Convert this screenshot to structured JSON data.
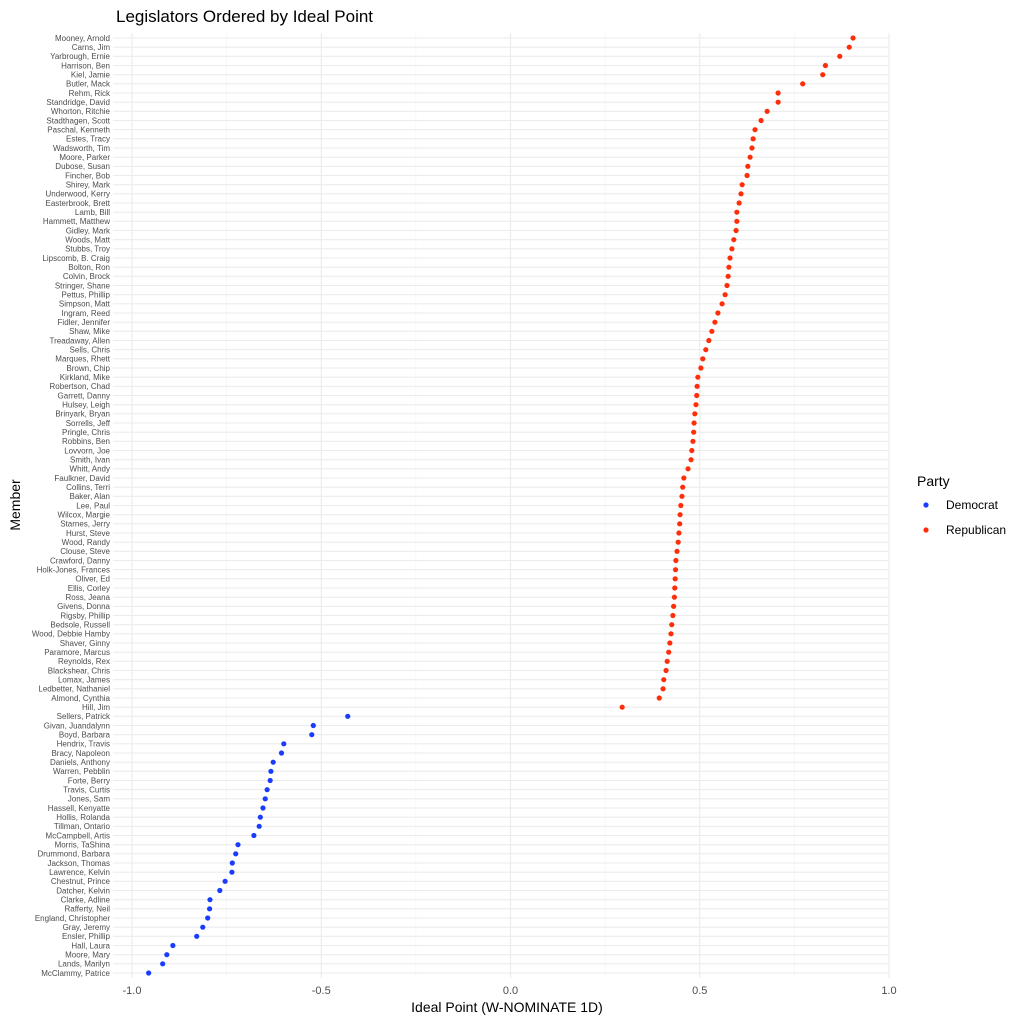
{
  "chart_data": {
    "type": "scatter",
    "title": "Legislators Ordered by Ideal Point",
    "xlabel": "Ideal Point (W-NOMINATE 1D)",
    "ylabel": "Member",
    "xlim": [
      -1.0,
      1.0
    ],
    "xticks": [
      -1.0,
      -0.5,
      0.0,
      0.5,
      1.0
    ],
    "xtick_labels": [
      "-1.0",
      "-0.5",
      "0.0",
      "0.5",
      "1.0"
    ],
    "grid": true,
    "legend": {
      "title": "Party",
      "placement": "right",
      "entries": [
        {
          "name": "Democrat",
          "color": "#1a3cff"
        },
        {
          "name": "Republican",
          "color": "#ff2e0a"
        }
      ]
    },
    "points": [
      {
        "name": "Mooney, Arnold",
        "x": 0.905,
        "party": "Republican"
      },
      {
        "name": "Carns, Jim",
        "x": 0.895,
        "party": "Republican"
      },
      {
        "name": "Yarbrough, Ernie",
        "x": 0.87,
        "party": "Republican"
      },
      {
        "name": "Harrison, Ben",
        "x": 0.832,
        "party": "Republican"
      },
      {
        "name": "Kiel, Jamie",
        "x": 0.825,
        "party": "Republican"
      },
      {
        "name": "Butler, Mack",
        "x": 0.772,
        "party": "Republican"
      },
      {
        "name": "Rehm, Rick",
        "x": 0.707,
        "party": "Republican"
      },
      {
        "name": "Standridge, David",
        "x": 0.707,
        "party": "Republican"
      },
      {
        "name": "Whorton, Ritchie",
        "x": 0.678,
        "party": "Republican"
      },
      {
        "name": "Stadthagen, Scott",
        "x": 0.662,
        "party": "Republican"
      },
      {
        "name": "Paschal, Kenneth",
        "x": 0.646,
        "party": "Republican"
      },
      {
        "name": "Estes, Tracy",
        "x": 0.641,
        "party": "Republican"
      },
      {
        "name": "Wadsworth, Tim",
        "x": 0.638,
        "party": "Republican"
      },
      {
        "name": "Moore, Parker",
        "x": 0.633,
        "party": "Republican"
      },
      {
        "name": "Dubose, Susan",
        "x": 0.627,
        "party": "Republican"
      },
      {
        "name": "Fincher, Bob",
        "x": 0.625,
        "party": "Republican"
      },
      {
        "name": "Shirey, Mark",
        "x": 0.612,
        "party": "Republican"
      },
      {
        "name": "Underwood, Kerry",
        "x": 0.609,
        "party": "Republican"
      },
      {
        "name": "Easterbrook, Brett",
        "x": 0.604,
        "party": "Republican"
      },
      {
        "name": "Lamb, Bill",
        "x": 0.598,
        "party": "Republican"
      },
      {
        "name": "Hammett, Matthew",
        "x": 0.598,
        "party": "Republican"
      },
      {
        "name": "Gidley, Mark",
        "x": 0.596,
        "party": "Republican"
      },
      {
        "name": "Woods, Matt",
        "x": 0.59,
        "party": "Republican"
      },
      {
        "name": "Stubbs, Troy",
        "x": 0.585,
        "party": "Republican"
      },
      {
        "name": "Lipscomb, B. Craig",
        "x": 0.58,
        "party": "Republican"
      },
      {
        "name": "Bolton, Ron",
        "x": 0.577,
        "party": "Republican"
      },
      {
        "name": "Colvin, Brock",
        "x": 0.575,
        "party": "Republican"
      },
      {
        "name": "Stringer, Shane",
        "x": 0.572,
        "party": "Republican"
      },
      {
        "name": "Pettus, Phillip",
        "x": 0.567,
        "party": "Republican"
      },
      {
        "name": "Simpson, Matt",
        "x": 0.559,
        "party": "Republican"
      },
      {
        "name": "Ingram, Reed",
        "x": 0.548,
        "party": "Republican"
      },
      {
        "name": "Fidler, Jennifer",
        "x": 0.54,
        "party": "Republican"
      },
      {
        "name": "Shaw, Mike",
        "x": 0.532,
        "party": "Republican"
      },
      {
        "name": "Treadaway, Allen",
        "x": 0.524,
        "party": "Republican"
      },
      {
        "name": "Sells, Chris",
        "x": 0.516,
        "party": "Republican"
      },
      {
        "name": "Marques, Rhett",
        "x": 0.508,
        "party": "Republican"
      },
      {
        "name": "Brown, Chip",
        "x": 0.503,
        "party": "Republican"
      },
      {
        "name": "Kirkland, Mike",
        "x": 0.495,
        "party": "Republican"
      },
      {
        "name": "Robertson, Chad",
        "x": 0.493,
        "party": "Republican"
      },
      {
        "name": "Garrett, Danny",
        "x": 0.492,
        "party": "Republican"
      },
      {
        "name": "Hulsey, Leigh",
        "x": 0.49,
        "party": "Republican"
      },
      {
        "name": "Brinyark, Bryan",
        "x": 0.487,
        "party": "Republican"
      },
      {
        "name": "Sorrells, Jeff",
        "x": 0.485,
        "party": "Republican"
      },
      {
        "name": "Pringle, Chris",
        "x": 0.484,
        "party": "Republican"
      },
      {
        "name": "Robbins, Ben",
        "x": 0.482,
        "party": "Republican"
      },
      {
        "name": "Lovvorn, Joe",
        "x": 0.479,
        "party": "Republican"
      },
      {
        "name": "Smith, Ivan",
        "x": 0.477,
        "party": "Republican"
      },
      {
        "name": "Whitt, Andy",
        "x": 0.469,
        "party": "Republican"
      },
      {
        "name": "Faulkner, David",
        "x": 0.458,
        "party": "Republican"
      },
      {
        "name": "Collins, Terri",
        "x": 0.455,
        "party": "Republican"
      },
      {
        "name": "Baker, Alan",
        "x": 0.453,
        "party": "Republican"
      },
      {
        "name": "Lee, Paul",
        "x": 0.45,
        "party": "Republican"
      },
      {
        "name": "Wilcox, Margie",
        "x": 0.448,
        "party": "Republican"
      },
      {
        "name": "Starnes, Jerry",
        "x": 0.447,
        "party": "Republican"
      },
      {
        "name": "Hurst, Steve",
        "x": 0.445,
        "party": "Republican"
      },
      {
        "name": "Wood, Randy",
        "x": 0.443,
        "party": "Republican"
      },
      {
        "name": "Clouse, Steve",
        "x": 0.44,
        "party": "Republican"
      },
      {
        "name": "Crawford, Danny",
        "x": 0.437,
        "party": "Republican"
      },
      {
        "name": "Holk-Jones, Frances",
        "x": 0.436,
        "party": "Republican"
      },
      {
        "name": "Oliver, Ed",
        "x": 0.435,
        "party": "Republican"
      },
      {
        "name": "Ellis, Corley",
        "x": 0.434,
        "party": "Republican"
      },
      {
        "name": "Ross, Jeana",
        "x": 0.433,
        "party": "Republican"
      },
      {
        "name": "Givens, Donna",
        "x": 0.431,
        "party": "Republican"
      },
      {
        "name": "Rigsby, Phillip",
        "x": 0.429,
        "party": "Republican"
      },
      {
        "name": "Bedsole, Russell",
        "x": 0.426,
        "party": "Republican"
      },
      {
        "name": "Wood, Debbie Hamby",
        "x": 0.424,
        "party": "Republican"
      },
      {
        "name": "Shaver, Ginny",
        "x": 0.421,
        "party": "Republican"
      },
      {
        "name": "Paramore, Marcus",
        "x": 0.418,
        "party": "Republican"
      },
      {
        "name": "Reynolds, Rex",
        "x": 0.414,
        "party": "Republican"
      },
      {
        "name": "Blackshear, Chris",
        "x": 0.411,
        "party": "Republican"
      },
      {
        "name": "Lomax, James",
        "x": 0.405,
        "party": "Republican"
      },
      {
        "name": "Ledbetter, Nathaniel",
        "x": 0.403,
        "party": "Republican"
      },
      {
        "name": "Almond, Cynthia",
        "x": 0.393,
        "party": "Republican"
      },
      {
        "name": "Hill, Jim",
        "x": 0.295,
        "party": "Republican"
      },
      {
        "name": "Sellers, Patrick",
        "x": -0.43,
        "party": "Democrat"
      },
      {
        "name": "Givan, Juandalynn",
        "x": -0.521,
        "party": "Democrat"
      },
      {
        "name": "Boyd, Barbara",
        "x": -0.525,
        "party": "Democrat"
      },
      {
        "name": "Hendrix, Travis",
        "x": -0.599,
        "party": "Democrat"
      },
      {
        "name": "Bracy, Napoleon",
        "x": -0.605,
        "party": "Democrat"
      },
      {
        "name": "Daniels, Anthony",
        "x": -0.627,
        "party": "Democrat"
      },
      {
        "name": "Warren, Pebblin",
        "x": -0.633,
        "party": "Democrat"
      },
      {
        "name": "Forte, Berry",
        "x": -0.635,
        "party": "Democrat"
      },
      {
        "name": "Travis, Curtis",
        "x": -0.643,
        "party": "Democrat"
      },
      {
        "name": "Jones, Sam",
        "x": -0.648,
        "party": "Democrat"
      },
      {
        "name": "Hassell, Kenyatte",
        "x": -0.654,
        "party": "Democrat"
      },
      {
        "name": "Hollis, Rolanda",
        "x": -0.661,
        "party": "Democrat"
      },
      {
        "name": "Tillman, Ontario",
        "x": -0.664,
        "party": "Democrat"
      },
      {
        "name": "McCampbell, Artis",
        "x": -0.678,
        "party": "Democrat"
      },
      {
        "name": "Morris, TaShina",
        "x": -0.72,
        "party": "Democrat"
      },
      {
        "name": "Drummond, Barbara",
        "x": -0.726,
        "party": "Democrat"
      },
      {
        "name": "Jackson, Thomas",
        "x": -0.735,
        "party": "Democrat"
      },
      {
        "name": "Lawrence, Kelvin",
        "x": -0.736,
        "party": "Democrat"
      },
      {
        "name": "Chestnut, Prince",
        "x": -0.754,
        "party": "Democrat"
      },
      {
        "name": "Datcher, Kelvin",
        "x": -0.768,
        "party": "Democrat"
      },
      {
        "name": "Clarke, Adline",
        "x": -0.794,
        "party": "Democrat"
      },
      {
        "name": "Rafferty, Neil",
        "x": -0.795,
        "party": "Democrat"
      },
      {
        "name": "England, Christopher",
        "x": -0.8,
        "party": "Democrat"
      },
      {
        "name": "Gray, Jeremy",
        "x": -0.813,
        "party": "Democrat"
      },
      {
        "name": "Ensler, Phillip",
        "x": -0.829,
        "party": "Democrat"
      },
      {
        "name": "Hall, Laura",
        "x": -0.892,
        "party": "Democrat"
      },
      {
        "name": "Moore, Mary",
        "x": -0.908,
        "party": "Democrat"
      },
      {
        "name": "Lands, Marilyn",
        "x": -0.919,
        "party": "Democrat"
      },
      {
        "name": "McClammy, Patrice",
        "x": -0.956,
        "party": "Democrat"
      }
    ]
  }
}
